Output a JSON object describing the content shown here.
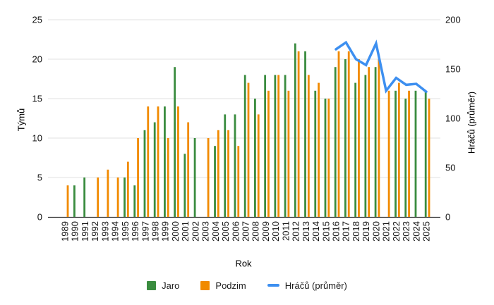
{
  "chart_data": {
    "type": "bar+line",
    "title": "",
    "xlabel": "Rok",
    "y_left": {
      "title": "Týmů",
      "min": 0,
      "max": 25,
      "ticks": [
        0,
        5,
        10,
        15,
        20,
        25
      ]
    },
    "y_right": {
      "title": "Hráčů (průměr)",
      "min": 0,
      "max": 200,
      "ticks": [
        0,
        50,
        100,
        150,
        200
      ]
    },
    "grid": true,
    "legend_position": "bottom",
    "categories": [
      "1989",
      "1990",
      "1991",
      "1992",
      "1993",
      "1994",
      "1995",
      "1996",
      "1997",
      "1998",
      "1999",
      "2000",
      "2001",
      "2002",
      "2003",
      "2004",
      "2005",
      "2006",
      "2007",
      "2008",
      "2009",
      "2010",
      "2011",
      "2012",
      "2013",
      "2014",
      "2015",
      "2016",
      "2017",
      "2018",
      "2019",
      "2020",
      "2021",
      "2022",
      "2023",
      "2024",
      "2025"
    ],
    "series": [
      {
        "name": "Jaro",
        "type": "bar",
        "axis": "left",
        "color": "#3A8C3F",
        "values": [
          0,
          4,
          5,
          0,
          0,
          0,
          5,
          4,
          11,
          12,
          14,
          19,
          8,
          10,
          0,
          9,
          13,
          13,
          18,
          15,
          18,
          18,
          18,
          22,
          21,
          16,
          15,
          19,
          20,
          17,
          18,
          19,
          0,
          16,
          15,
          16,
          16
        ]
      },
      {
        "name": "Podzim",
        "type": "bar",
        "axis": "left",
        "color": "#F18A00",
        "values": [
          4,
          0,
          0,
          5,
          6,
          5,
          7,
          10,
          14,
          14,
          10,
          14,
          12,
          0,
          10,
          11,
          11,
          9,
          17,
          13,
          16,
          18,
          16,
          21,
          18,
          17,
          15,
          21,
          21,
          20,
          19,
          20,
          16,
          17,
          16,
          0,
          15
        ]
      },
      {
        "name": "Hráčů (průměr)",
        "type": "line",
        "axis": "right",
        "color": "#3D8FF0",
        "values": [
          null,
          null,
          null,
          null,
          null,
          null,
          null,
          null,
          null,
          null,
          null,
          null,
          null,
          null,
          null,
          null,
          null,
          null,
          null,
          null,
          null,
          null,
          null,
          null,
          null,
          null,
          null,
          170,
          177,
          160,
          154,
          176,
          128,
          141,
          134,
          135,
          127
        ]
      }
    ],
    "colors": {
      "grid": "#e2e2e2",
      "axis": "#333333",
      "text": "#111111"
    }
  }
}
